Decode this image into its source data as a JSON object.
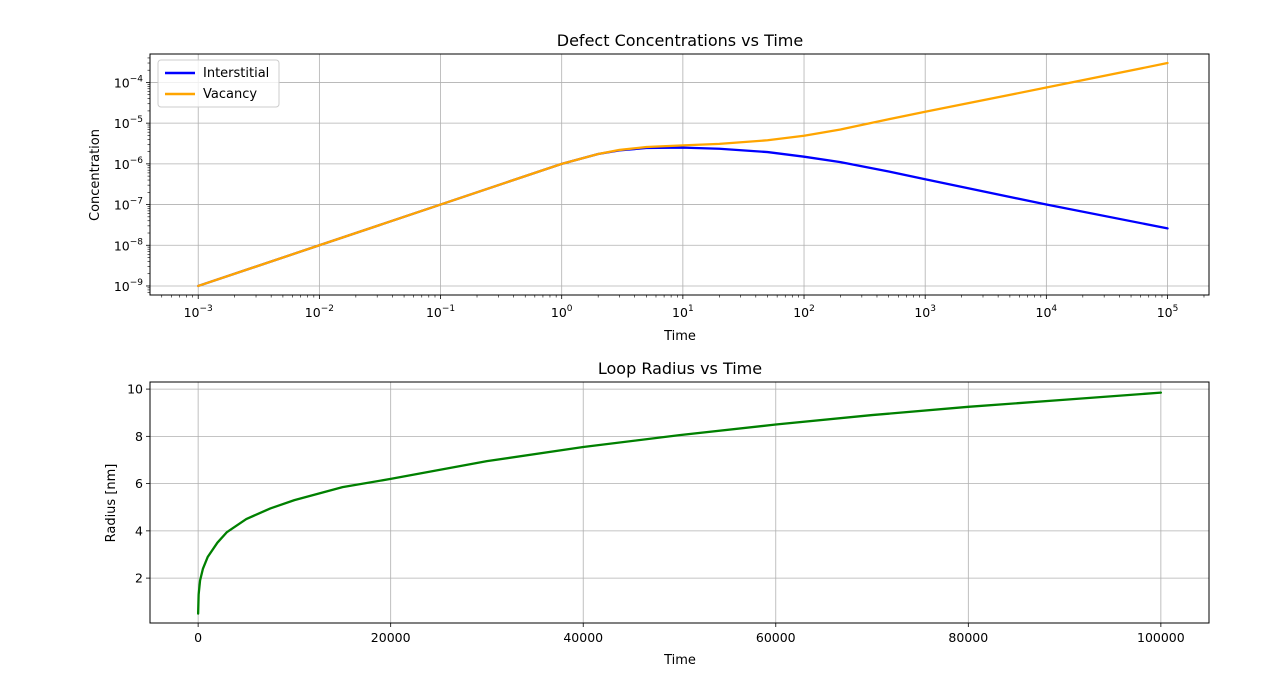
{
  "chart_data": [
    {
      "type": "line",
      "title": "Defect Concentrations vs Time",
      "xlabel": "Time",
      "ylabel": "Concentration",
      "xscale": "log",
      "yscale": "log",
      "xlim": [
        0.0004,
        220000
      ],
      "ylim": [
        6e-10,
        0.0005
      ],
      "x_ticks": [
        0.001,
        0.01,
        0.1,
        1,
        10,
        100,
        1000,
        10000,
        100000
      ],
      "x_tick_labels": [
        {
          "base": "10",
          "exp": "−3"
        },
        {
          "base": "10",
          "exp": "−2"
        },
        {
          "base": "10",
          "exp": "−1"
        },
        {
          "base": "10",
          "exp": "0"
        },
        {
          "base": "10",
          "exp": "1"
        },
        {
          "base": "10",
          "exp": "2"
        },
        {
          "base": "10",
          "exp": "3"
        },
        {
          "base": "10",
          "exp": "4"
        },
        {
          "base": "10",
          "exp": "5"
        }
      ],
      "y_ticks": [
        1e-09,
        1e-08,
        1e-07,
        1e-06,
        1e-05,
        0.0001
      ],
      "y_tick_labels": [
        {
          "base": "10",
          "exp": "−9"
        },
        {
          "base": "10",
          "exp": "−8"
        },
        {
          "base": "10",
          "exp": "−7"
        },
        {
          "base": "10",
          "exp": "−6"
        },
        {
          "base": "10",
          "exp": "−5"
        },
        {
          "base": "10",
          "exp": "−4"
        }
      ],
      "grid": true,
      "legend": "upper-left",
      "series": [
        {
          "name": "Interstitial",
          "color": "#0000ff",
          "x": [
            0.001,
            0.01,
            0.1,
            1,
            2,
            3,
            5,
            10,
            20,
            50,
            100,
            200,
            500,
            1000,
            10000,
            100000
          ],
          "y": [
            1e-09,
            1e-08,
            1e-07,
            1e-06,
            1.75e-06,
            2.15e-06,
            2.45e-06,
            2.5e-06,
            2.35e-06,
            1.95e-06,
            1.5e-06,
            1.1e-06,
            6.5e-07,
            4.2e-07,
            1e-07,
            2.6e-08
          ]
        },
        {
          "name": "Vacancy",
          "color": "#ffa500",
          "x": [
            0.001,
            0.01,
            0.1,
            1,
            2,
            3,
            5,
            10,
            20,
            50,
            100,
            200,
            500,
            1000,
            10000,
            100000
          ],
          "y": [
            1e-09,
            1e-08,
            1e-07,
            1e-06,
            1.75e-06,
            2.2e-06,
            2.6e-06,
            2.85e-06,
            3.1e-06,
            3.8e-06,
            4.9e-06,
            7e-06,
            1.25e-05,
            1.9e-05,
            7.5e-05,
            0.0003
          ]
        }
      ]
    },
    {
      "type": "line",
      "title": "Loop Radius vs Time",
      "xlabel": "Time",
      "ylabel": "Radius [nm]",
      "xlim": [
        -5000,
        105000
      ],
      "ylim": [
        0.1,
        10.3
      ],
      "x_ticks": [
        0,
        20000,
        40000,
        60000,
        80000,
        100000
      ],
      "x_tick_labels": [
        "0",
        "20000",
        "40000",
        "60000",
        "80000",
        "100000"
      ],
      "y_ticks": [
        2,
        4,
        6,
        8,
        10
      ],
      "y_tick_labels": [
        "2",
        "4",
        "6",
        "8",
        "10"
      ],
      "grid": true,
      "series": [
        {
          "color": "#008000",
          "x": [
            0,
            50,
            200,
            500,
            1000,
            2000,
            3000,
            5000,
            7500,
            10000,
            15000,
            20000,
            30000,
            40000,
            50000,
            60000,
            70000,
            80000,
            90000,
            100000
          ],
          "y": [
            0.5,
            1.3,
            1.9,
            2.4,
            2.9,
            3.5,
            3.95,
            4.5,
            4.95,
            5.3,
            5.85,
            6.2,
            6.95,
            7.55,
            8.05,
            8.5,
            8.9,
            9.25,
            9.55,
            9.85
          ]
        }
      ]
    }
  ]
}
